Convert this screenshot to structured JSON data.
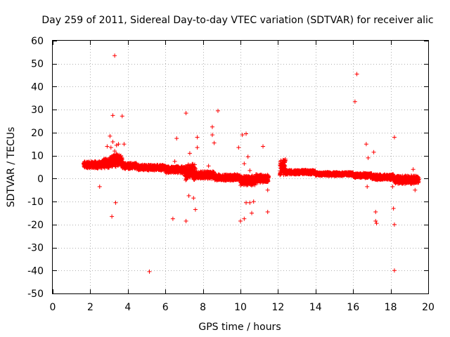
{
  "chart_data": {
    "type": "scatter",
    "title": "Day 259 of 2011, Sidereal Day-to-day VTEC variation (SDTVAR) for receiver alic",
    "xlabel": "GPS time / hours",
    "ylabel": "SDTVAR / TECUs",
    "xlim": [
      0,
      20
    ],
    "ylim": [
      -50,
      60
    ],
    "xticks": [
      "0",
      "2",
      "4",
      "6",
      "8",
      "10",
      "12",
      "14",
      "16",
      "18",
      "20"
    ],
    "yticks": [
      "60",
      "50",
      "40",
      "30",
      "20",
      "10",
      "0",
      "-10",
      "-20",
      "-30",
      "-40",
      "-50"
    ],
    "grid": true,
    "marker": "+",
    "color": "#ff0000",
    "dense_segments": [
      {
        "x_start": 1.65,
        "x_end": 2.6,
        "y_center": 6,
        "spread": 2.6
      },
      {
        "x_start": 2.6,
        "x_end": 3.0,
        "y_center": 6.5,
        "spread": 3.5
      },
      {
        "x_start": 3.0,
        "x_end": 3.7,
        "y_center": 8,
        "spread": 4.5
      },
      {
        "x_start": 3.7,
        "x_end": 4.5,
        "y_center": 5.5,
        "spread": 2.2
      },
      {
        "x_start": 4.5,
        "x_end": 6.0,
        "y_center": 4.8,
        "spread": 2.0
      },
      {
        "x_start": 6.0,
        "x_end": 7.0,
        "y_center": 3.8,
        "spread": 2.5
      },
      {
        "x_start": 7.0,
        "x_end": 7.6,
        "y_center": 3,
        "spread": 6
      },
      {
        "x_start": 7.6,
        "x_end": 8.6,
        "y_center": 1.5,
        "spread": 2.8
      },
      {
        "x_start": 8.6,
        "x_end": 10.0,
        "y_center": 0.5,
        "spread": 2.2
      },
      {
        "x_start": 10.0,
        "x_end": 10.8,
        "y_center": -0.8,
        "spread": 3.5
      },
      {
        "x_start": 10.8,
        "x_end": 11.5,
        "y_center": 0,
        "spread": 3.0
      },
      {
        "x_start": 12.1,
        "x_end": 12.4,
        "y_center": 5,
        "spread": 6
      },
      {
        "x_start": 12.4,
        "x_end": 14.0,
        "y_center": 2.8,
        "spread": 1.6
      },
      {
        "x_start": 14.0,
        "x_end": 16.0,
        "y_center": 2.0,
        "spread": 1.4
      },
      {
        "x_start": 16.0,
        "x_end": 17.0,
        "y_center": 1.3,
        "spread": 1.8
      },
      {
        "x_start": 17.0,
        "x_end": 18.2,
        "y_center": 0.6,
        "spread": 2.0
      },
      {
        "x_start": 18.2,
        "x_end": 19.5,
        "y_center": -0.5,
        "spread": 3.0
      }
    ],
    "outliers": [
      {
        "x": 3.3,
        "y": 53.5
      },
      {
        "x": 3.2,
        "y": 27.5
      },
      {
        "x": 3.7,
        "y": 27.2
      },
      {
        "x": 3.05,
        "y": 18.5
      },
      {
        "x": 3.2,
        "y": 16.0
      },
      {
        "x": 3.5,
        "y": 15.0
      },
      {
        "x": 3.4,
        "y": 14.5
      },
      {
        "x": 3.1,
        "y": 13.5
      },
      {
        "x": 3.3,
        "y": 12.0
      },
      {
        "x": 2.9,
        "y": 14.0
      },
      {
        "x": 3.8,
        "y": 15.0
      },
      {
        "x": 2.5,
        "y": -3.5
      },
      {
        "x": 3.35,
        "y": -10.5
      },
      {
        "x": 3.15,
        "y": -16.5
      },
      {
        "x": 5.15,
        "y": -40.5
      },
      {
        "x": 6.4,
        "y": -17.5
      },
      {
        "x": 6.6,
        "y": 17.5
      },
      {
        "x": 6.5,
        "y": 7.5
      },
      {
        "x": 7.1,
        "y": 28.5
      },
      {
        "x": 7.1,
        "y": -18.5
      },
      {
        "x": 7.3,
        "y": 11.0
      },
      {
        "x": 7.25,
        "y": -7.5
      },
      {
        "x": 7.6,
        "y": -13.5
      },
      {
        "x": 7.7,
        "y": 18.0
      },
      {
        "x": 7.7,
        "y": 13.5
      },
      {
        "x": 7.5,
        "y": -8.5
      },
      {
        "x": 8.5,
        "y": 22.5
      },
      {
        "x": 8.5,
        "y": 19.0
      },
      {
        "x": 8.6,
        "y": 15.5
      },
      {
        "x": 8.8,
        "y": 29.5
      },
      {
        "x": 8.3,
        "y": 5.5
      },
      {
        "x": 9.9,
        "y": 13.5
      },
      {
        "x": 10.1,
        "y": 19.0
      },
      {
        "x": 10.3,
        "y": 19.5
      },
      {
        "x": 10.4,
        "y": 9.5
      },
      {
        "x": 10.2,
        "y": 6.5
      },
      {
        "x": 10.5,
        "y": 3.5
      },
      {
        "x": 10.0,
        "y": -18.5
      },
      {
        "x": 10.2,
        "y": -17.5
      },
      {
        "x": 10.3,
        "y": -10.5
      },
      {
        "x": 10.5,
        "y": -10.5
      },
      {
        "x": 10.6,
        "y": -15.0
      },
      {
        "x": 10.7,
        "y": -10.0
      },
      {
        "x": 11.2,
        "y": 14.0
      },
      {
        "x": 11.45,
        "y": -5.0
      },
      {
        "x": 11.45,
        "y": -14.5
      },
      {
        "x": 16.2,
        "y": 45.5
      },
      {
        "x": 16.1,
        "y": 33.5
      },
      {
        "x": 16.7,
        "y": 15.0
      },
      {
        "x": 16.8,
        "y": 9.0
      },
      {
        "x": 17.1,
        "y": 11.5
      },
      {
        "x": 17.2,
        "y": -14.5
      },
      {
        "x": 17.2,
        "y": -18.5
      },
      {
        "x": 17.25,
        "y": -19.5
      },
      {
        "x": 16.75,
        "y": -3.5
      },
      {
        "x": 18.2,
        "y": 18.0
      },
      {
        "x": 18.15,
        "y": -13.0
      },
      {
        "x": 18.2,
        "y": -20.0
      },
      {
        "x": 18.2,
        "y": -40.0
      },
      {
        "x": 18.1,
        "y": -3.5
      },
      {
        "x": 19.3,
        "y": -5.0
      },
      {
        "x": 19.2,
        "y": 4.0
      }
    ]
  }
}
